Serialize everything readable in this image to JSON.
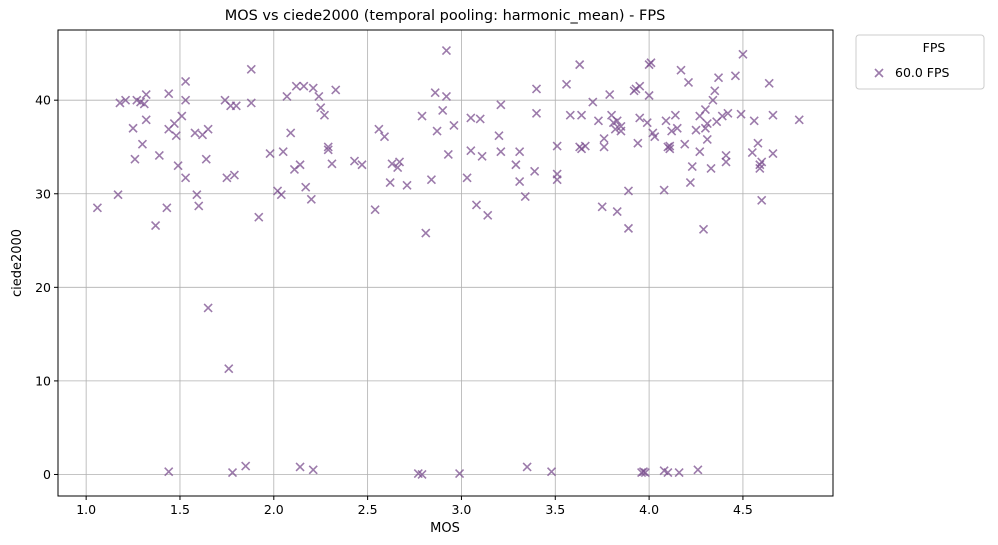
{
  "chart_data": {
    "type": "scatter",
    "title": "MOS vs ciede2000 (temporal pooling: harmonic_mean) - FPS",
    "xlabel": "MOS",
    "ylabel": "ciede2000",
    "xlim": [
      0.85,
      4.98
    ],
    "ylim": [
      -2.3,
      47.5
    ],
    "xticks": [
      1.0,
      1.5,
      2.0,
      2.5,
      3.0,
      3.5,
      4.0,
      4.5
    ],
    "xtick_labels": [
      "1.0",
      "1.5",
      "2.0",
      "2.5",
      "3.0",
      "3.5",
      "4.0",
      "4.5"
    ],
    "yticks": [
      0,
      10,
      20,
      30,
      40
    ],
    "ytick_labels": [
      "0",
      "10",
      "20",
      "30",
      "40"
    ],
    "grid": true,
    "legend": {
      "title": "FPS",
      "placement": "outside-top-right"
    },
    "series": [
      {
        "name": "60.0 FPS",
        "marker": "x",
        "color": "#7b4f8f",
        "points": [
          [
            1.06,
            28.5
          ],
          [
            1.17,
            29.9
          ],
          [
            1.18,
            39.7
          ],
          [
            1.21,
            40.0
          ],
          [
            1.25,
            37.0
          ],
          [
            1.26,
            33.7
          ],
          [
            1.27,
            40.0
          ],
          [
            1.29,
            39.8
          ],
          [
            1.3,
            35.3
          ],
          [
            1.31,
            39.6
          ],
          [
            1.32,
            40.6
          ],
          [
            1.32,
            37.9
          ],
          [
            1.37,
            26.6
          ],
          [
            1.39,
            34.1
          ],
          [
            1.43,
            28.5
          ],
          [
            1.44,
            40.7
          ],
          [
            1.44,
            36.9
          ],
          [
            1.44,
            0.3
          ],
          [
            1.47,
            37.5
          ],
          [
            1.48,
            36.2
          ],
          [
            1.49,
            33.0
          ],
          [
            1.51,
            38.3
          ],
          [
            1.53,
            40.0
          ],
          [
            1.53,
            31.7
          ],
          [
            1.53,
            42.0
          ],
          [
            1.58,
            36.5
          ],
          [
            1.59,
            29.9
          ],
          [
            1.6,
            28.7
          ],
          [
            1.62,
            36.3
          ],
          [
            1.64,
            33.7
          ],
          [
            1.65,
            36.9
          ],
          [
            1.65,
            17.8
          ],
          [
            1.74,
            40.0
          ],
          [
            1.75,
            31.7
          ],
          [
            1.76,
            11.3
          ],
          [
            1.77,
            39.4
          ],
          [
            1.78,
            0.2
          ],
          [
            1.79,
            32.0
          ],
          [
            1.8,
            39.4
          ],
          [
            1.85,
            0.9
          ],
          [
            1.88,
            43.3
          ],
          [
            1.88,
            39.7
          ],
          [
            1.92,
            27.5
          ],
          [
            1.98,
            34.3
          ],
          [
            2.02,
            30.3
          ],
          [
            2.04,
            29.9
          ],
          [
            2.05,
            34.5
          ],
          [
            2.07,
            40.4
          ],
          [
            2.09,
            36.5
          ],
          [
            2.11,
            32.6
          ],
          [
            2.12,
            41.5
          ],
          [
            2.14,
            33.1
          ],
          [
            2.14,
            0.8
          ],
          [
            2.16,
            41.5
          ],
          [
            2.17,
            30.7
          ],
          [
            2.2,
            29.4
          ],
          [
            2.21,
            41.3
          ],
          [
            2.21,
            0.5
          ],
          [
            2.24,
            40.4
          ],
          [
            2.25,
            39.2
          ],
          [
            2.27,
            38.4
          ],
          [
            2.29,
            35.0
          ],
          [
            2.29,
            34.7
          ],
          [
            2.31,
            33.2
          ],
          [
            2.33,
            41.1
          ],
          [
            2.43,
            33.5
          ],
          [
            2.47,
            33.1
          ],
          [
            2.54,
            28.3
          ],
          [
            2.56,
            36.9
          ],
          [
            2.59,
            36.1
          ],
          [
            2.62,
            31.2
          ],
          [
            2.63,
            33.2
          ],
          [
            2.66,
            32.8
          ],
          [
            2.67,
            33.4
          ],
          [
            2.71,
            30.9
          ],
          [
            2.77,
            0.1
          ],
          [
            2.79,
            0.0
          ],
          [
            2.79,
            38.3
          ],
          [
            2.81,
            25.8
          ],
          [
            2.84,
            31.5
          ],
          [
            2.86,
            40.8
          ],
          [
            2.87,
            36.7
          ],
          [
            2.9,
            38.9
          ],
          [
            2.92,
            45.3
          ],
          [
            2.92,
            40.4
          ],
          [
            2.93,
            34.2
          ],
          [
            2.96,
            37.3
          ],
          [
            2.99,
            0.1
          ],
          [
            3.03,
            31.7
          ],
          [
            3.05,
            34.6
          ],
          [
            3.05,
            38.1
          ],
          [
            3.08,
            28.8
          ],
          [
            3.1,
            38.0
          ],
          [
            3.11,
            34.0
          ],
          [
            3.14,
            27.7
          ],
          [
            3.2,
            36.2
          ],
          [
            3.21,
            34.5
          ],
          [
            3.21,
            39.5
          ],
          [
            3.29,
            33.1
          ],
          [
            3.31,
            31.3
          ],
          [
            3.31,
            34.5
          ],
          [
            3.34,
            29.7
          ],
          [
            3.35,
            0.8
          ],
          [
            3.39,
            32.4
          ],
          [
            3.4,
            41.2
          ],
          [
            3.4,
            38.6
          ],
          [
            3.48,
            0.3
          ],
          [
            3.51,
            35.1
          ],
          [
            3.51,
            32.1
          ],
          [
            3.51,
            31.5
          ],
          [
            3.56,
            41.7
          ],
          [
            3.58,
            38.4
          ],
          [
            3.63,
            43.8
          ],
          [
            3.63,
            35.0
          ],
          [
            3.64,
            34.8
          ],
          [
            3.64,
            38.4
          ],
          [
            3.66,
            35.1
          ],
          [
            3.7,
            39.8
          ],
          [
            3.73,
            37.8
          ],
          [
            3.75,
            28.6
          ],
          [
            3.76,
            35.9
          ],
          [
            3.76,
            35.0
          ],
          [
            3.79,
            40.6
          ],
          [
            3.8,
            38.4
          ],
          [
            3.81,
            37.6
          ],
          [
            3.82,
            36.9
          ],
          [
            3.83,
            28.1
          ],
          [
            3.83,
            37.8
          ],
          [
            3.85,
            36.7
          ],
          [
            3.85,
            37.2
          ],
          [
            3.89,
            30.3
          ],
          [
            3.89,
            26.3
          ],
          [
            3.92,
            41.0
          ],
          [
            3.93,
            41.2
          ],
          [
            3.94,
            35.4
          ],
          [
            3.95,
            38.1
          ],
          [
            3.95,
            41.5
          ],
          [
            3.96,
            0.2
          ],
          [
            3.97,
            0.3
          ],
          [
            3.98,
            0.2
          ],
          [
            3.99,
            37.6
          ],
          [
            4.0,
            43.8
          ],
          [
            4.0,
            40.5
          ],
          [
            4.01,
            44.0
          ],
          [
            4.02,
            36.5
          ],
          [
            4.03,
            36.1
          ],
          [
            4.08,
            30.4
          ],
          [
            4.08,
            0.4
          ],
          [
            4.09,
            37.8
          ],
          [
            4.1,
            0.2
          ],
          [
            4.1,
            35.0
          ],
          [
            4.11,
            34.8
          ],
          [
            4.11,
            35.1
          ],
          [
            4.12,
            36.7
          ],
          [
            4.14,
            38.4
          ],
          [
            4.15,
            37.0
          ],
          [
            4.16,
            0.2
          ],
          [
            4.17,
            43.2
          ],
          [
            4.19,
            35.3
          ],
          [
            4.21,
            41.9
          ],
          [
            4.22,
            31.2
          ],
          [
            4.23,
            32.9
          ],
          [
            4.25,
            36.8
          ],
          [
            4.26,
            0.5
          ],
          [
            4.27,
            34.5
          ],
          [
            4.27,
            38.3
          ],
          [
            4.29,
            26.2
          ],
          [
            4.3,
            39.0
          ],
          [
            4.3,
            37.0
          ],
          [
            4.31,
            37.5
          ],
          [
            4.31,
            35.8
          ],
          [
            4.33,
            32.7
          ],
          [
            4.34,
            40.0
          ],
          [
            4.35,
            41.0
          ],
          [
            4.36,
            37.7
          ],
          [
            4.37,
            42.4
          ],
          [
            4.39,
            38.3
          ],
          [
            4.41,
            34.1
          ],
          [
            4.41,
            33.4
          ],
          [
            4.42,
            38.6
          ],
          [
            4.46,
            42.6
          ],
          [
            4.49,
            38.5
          ],
          [
            4.5,
            44.9
          ],
          [
            4.55,
            34.4
          ],
          [
            4.56,
            37.8
          ],
          [
            4.58,
            35.4
          ],
          [
            4.59,
            32.7
          ],
          [
            4.59,
            33.1
          ],
          [
            4.6,
            29.3
          ],
          [
            4.6,
            33.4
          ],
          [
            4.64,
            41.8
          ],
          [
            4.66,
            38.4
          ],
          [
            4.66,
            34.3
          ],
          [
            4.8,
            37.9
          ]
        ]
      }
    ]
  }
}
